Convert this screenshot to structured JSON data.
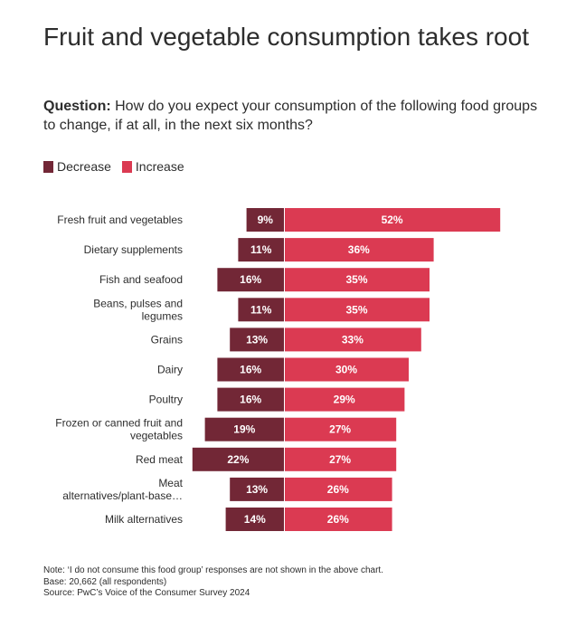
{
  "title": "Fruit and vegetable consumption takes root",
  "question_label": "Question:",
  "question_text": "How do you expect your consumption of the following food groups to change, if at all, in the next six months?",
  "colors": {
    "decrease": "#722736",
    "increase": "#db3a52",
    "text": "#2d2d2d"
  },
  "chart_data": {
    "type": "bar",
    "orientation": "diverging-horizontal",
    "categories": [
      [
        "Fresh fruit and vegetables"
      ],
      [
        "Dietary supplements"
      ],
      [
        "Fish and seafood"
      ],
      [
        "Beans, pulses and",
        "legumes"
      ],
      [
        "Grains"
      ],
      [
        "Dairy"
      ],
      [
        "Poultry"
      ],
      [
        "Frozen or canned fruit and",
        "vegetables"
      ],
      [
        "Red meat"
      ],
      [
        "Meat",
        "alternatives/plant-base…"
      ],
      [
        "Milk alternatives"
      ]
    ],
    "series": [
      {
        "name": "Decrease",
        "values": [
          9,
          11,
          16,
          11,
          13,
          16,
          16,
          19,
          22,
          13,
          14
        ]
      },
      {
        "name": "Increase",
        "values": [
          52,
          36,
          35,
          35,
          33,
          30,
          29,
          27,
          27,
          26,
          26
        ]
      }
    ],
    "value_suffix": "%",
    "legend_position": "top-left",
    "grid": false
  },
  "notes": [
    "Note: ‘I do not consume this food group’ responses are not shown in the above chart.",
    "Base: 20,662 (all respondents)",
    "Source: PwC’s Voice of the Consumer Survey 2024"
  ]
}
